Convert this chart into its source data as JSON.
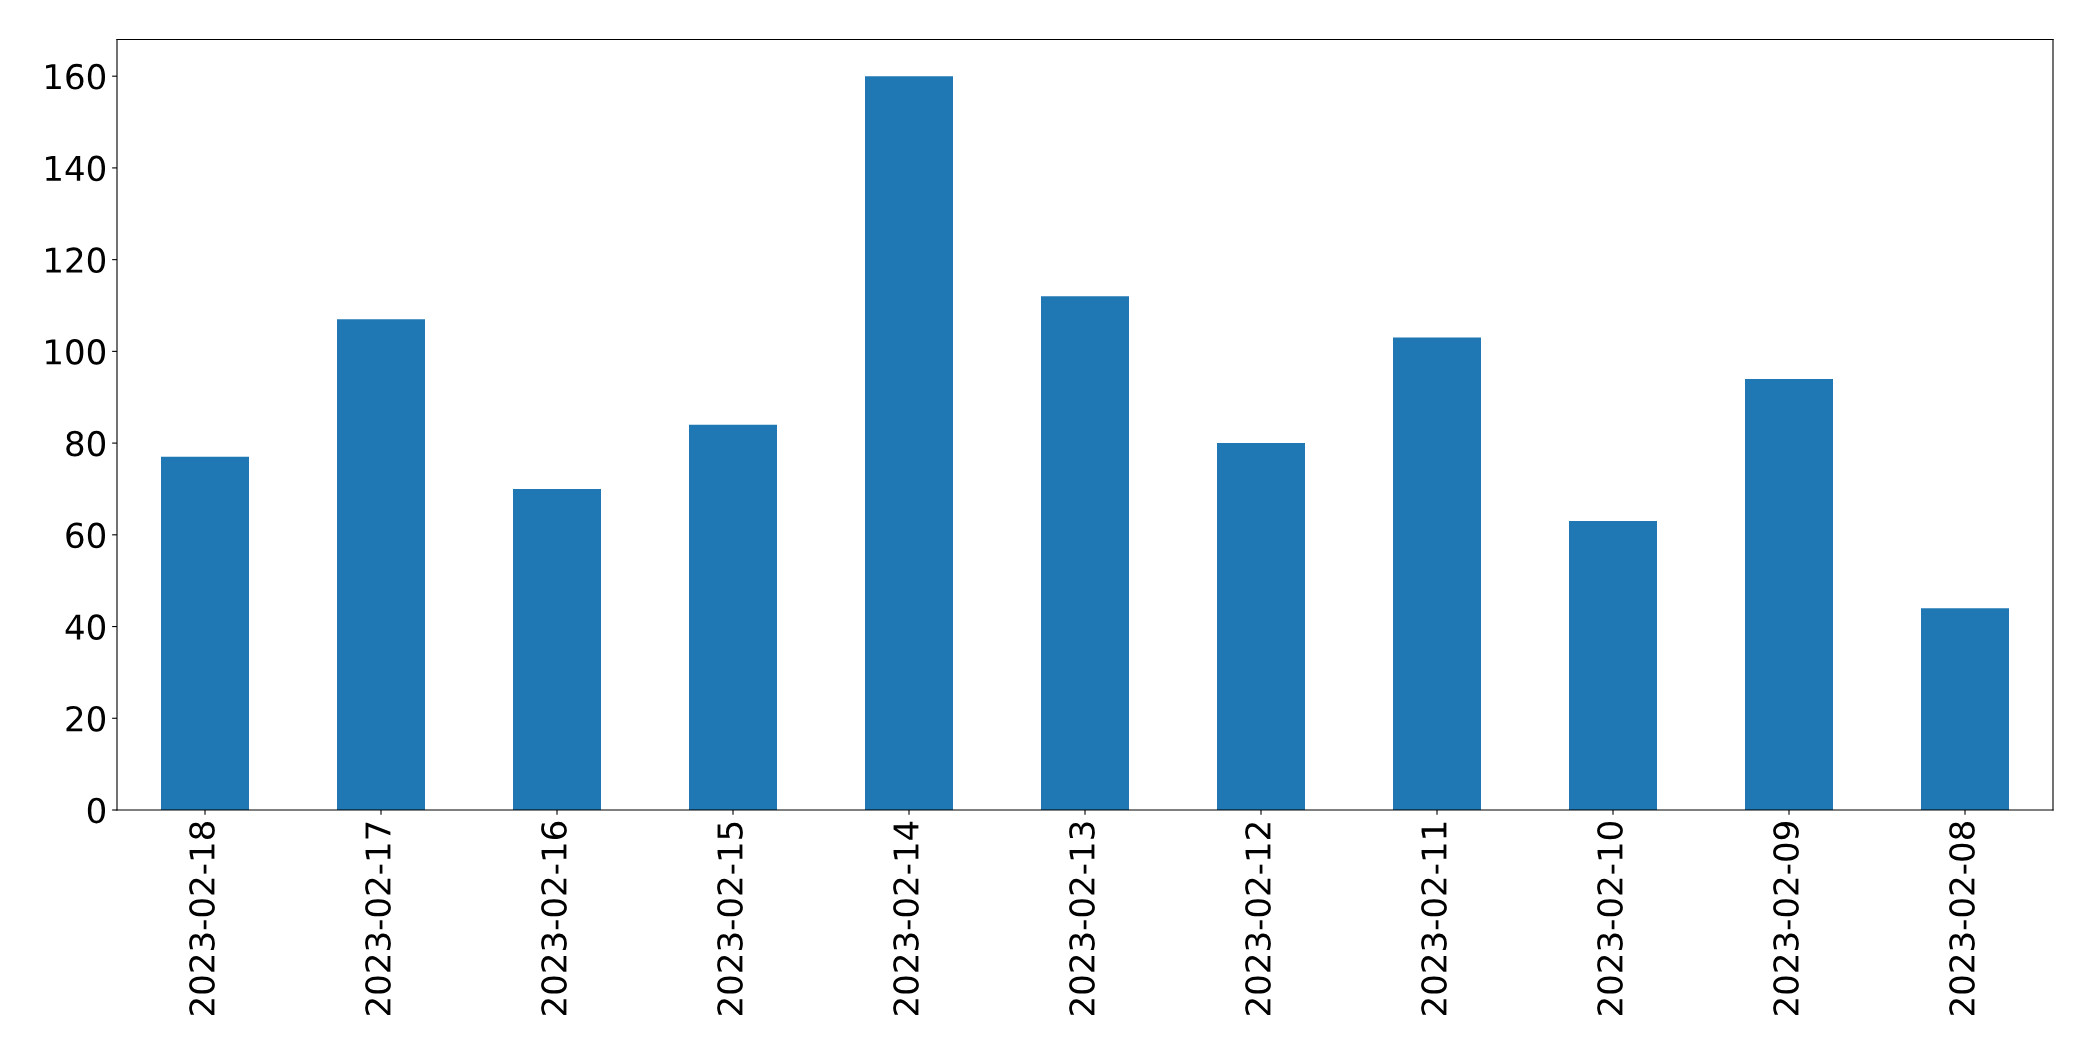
{
  "chart_data": {
    "type": "bar",
    "categories": [
      "2023-02-18",
      "2023-02-17",
      "2023-02-16",
      "2023-02-15",
      "2023-02-14",
      "2023-02-13",
      "2023-02-12",
      "2023-02-11",
      "2023-02-10",
      "2023-02-09",
      "2023-02-08"
    ],
    "values": [
      77,
      107,
      70,
      84,
      160,
      112,
      80,
      103,
      63,
      94,
      44
    ],
    "color": "#1f77b4",
    "ylim": [
      0,
      168
    ],
    "yticks": [
      0,
      20,
      40,
      60,
      80,
      100,
      120,
      140,
      160
    ],
    "grid": false
  }
}
